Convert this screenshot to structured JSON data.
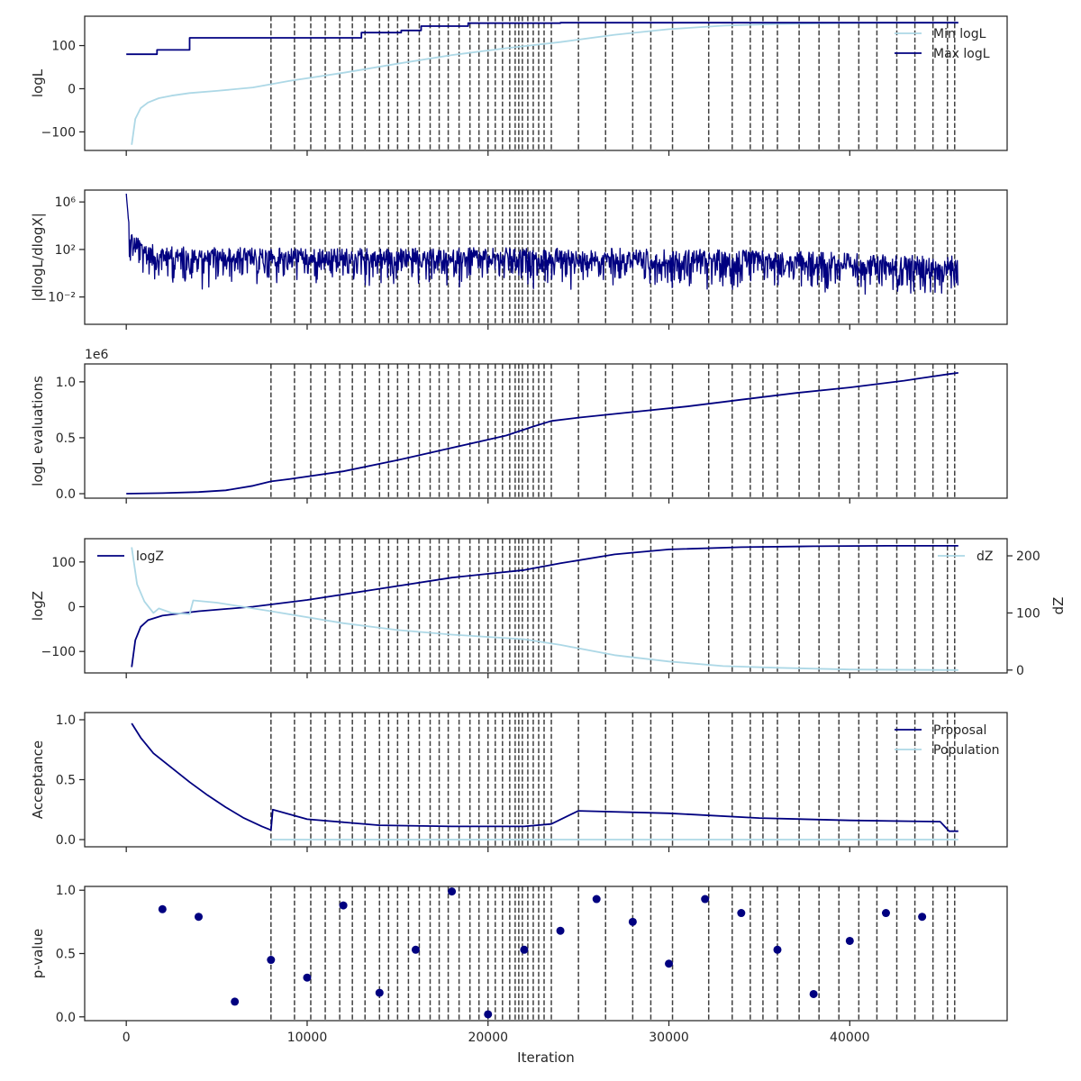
{
  "colors": {
    "dark": "#000080",
    "light": "#add8e6",
    "axis": "#262626",
    "vline": "#404040"
  },
  "xaxis": {
    "label": "Iteration",
    "xlim": [
      -2300,
      48700
    ],
    "ticks": [
      0,
      10000,
      20000,
      30000,
      40000
    ],
    "tick_labels": [
      "0",
      "10000",
      "20000",
      "30000",
      "40000"
    ]
  },
  "chart_data": [
    {
      "type": "line",
      "id": "logl",
      "ylabel": "logL",
      "ylim": [
        -143,
        168
      ],
      "yticks": [
        -100,
        0,
        100
      ],
      "ytick_labels": [
        "−100",
        "0",
        "100"
      ],
      "legend": {
        "placement": "top-right"
      },
      "series": [
        {
          "name": "Min logL",
          "color": "light",
          "x": [
            300,
            500,
            800,
            1200,
            1800,
            2500,
            3500,
            5000,
            7000,
            9000,
            12000,
            15000,
            18000,
            21000,
            24000,
            27000,
            30000,
            33000,
            36000,
            39000,
            42000,
            44000,
            46000
          ],
          "y": [
            -130,
            -70,
            -45,
            -32,
            -22,
            -16,
            -10,
            -5,
            3,
            18,
            37,
            58,
            78,
            94,
            108,
            125,
            138,
            146,
            150,
            152,
            153,
            153,
            153
          ]
        },
        {
          "name": "Max logL",
          "color": "dark",
          "step": true,
          "x": [
            0,
            1700,
            1700,
            3500,
            3500,
            13000,
            13000,
            15200,
            15200,
            16300,
            16300,
            18900,
            18900,
            24000,
            24000,
            46000
          ],
          "y": [
            80,
            80,
            90,
            90,
            118,
            118,
            130,
            130,
            135,
            135,
            145,
            145,
            152,
            152,
            153,
            153
          ]
        }
      ]
    },
    {
      "type": "line",
      "id": "dlogl",
      "ylabel": "|dlogL/dlogX|",
      "scale": "log",
      "ylim": [
        -4.3,
        7.0
      ],
      "yticks": [
        -2,
        2,
        6
      ],
      "ytick_labels": [
        "10⁻²",
        "10²",
        "10⁶"
      ],
      "series": [
        {
          "name": "",
          "color": "dark",
          "noisy": true,
          "x": [
            0,
            200,
            1000,
            3000,
            10000,
            25000,
            35000,
            45000,
            46000
          ],
          "y": [
            6.7,
            3.0,
            2.0,
            1.6,
            1.5,
            1.5,
            1.3,
            0.8,
            0.8
          ]
        }
      ]
    },
    {
      "type": "line",
      "id": "evals",
      "ylabel": "logL evaluations",
      "offset_label": "1e6",
      "ylim": [
        -0.04,
        1.16
      ],
      "yticks": [
        0.0,
        0.5,
        1.0
      ],
      "ytick_labels": [
        "0.0",
        "0.5",
        "1.0"
      ],
      "series": [
        {
          "name": "",
          "color": "dark",
          "x": [
            0,
            2000,
            4000,
            5500,
            7000,
            8000,
            9000,
            12000,
            15000,
            18000,
            21000,
            22500,
            23500,
            25000,
            28000,
            31000,
            34000,
            37000,
            40000,
            43000,
            45500,
            46000
          ],
          "y": [
            0.0,
            0.005,
            0.015,
            0.03,
            0.07,
            0.11,
            0.13,
            0.2,
            0.3,
            0.41,
            0.52,
            0.6,
            0.65,
            0.68,
            0.73,
            0.78,
            0.84,
            0.9,
            0.95,
            1.01,
            1.07,
            1.08
          ]
        }
      ]
    },
    {
      "type": "line",
      "id": "logz",
      "ylabel": "logZ",
      "ylabel_right": "dZ",
      "ylim": [
        -148,
        152
      ],
      "yticks": [
        -100,
        0,
        100
      ],
      "ytick_labels": [
        "−100",
        "0",
        "100"
      ],
      "ylim_right": [
        -5,
        230
      ],
      "yticks_right": [
        0,
        100,
        200
      ],
      "ytick_labels_right": [
        "0",
        "100",
        "200"
      ],
      "series": [
        {
          "name": "logZ",
          "color": "dark",
          "legend": "top-left",
          "x": [
            300,
            500,
            800,
            1200,
            2000,
            4000,
            7000,
            10000,
            14000,
            18000,
            22000,
            24000,
            27000,
            30000,
            34000,
            38000,
            42000,
            46000
          ],
          "y": [
            -135,
            -75,
            -45,
            -30,
            -20,
            -10,
            0,
            15,
            40,
            65,
            82,
            97,
            117,
            128,
            133,
            135,
            136,
            136
          ]
        },
        {
          "name": "dZ",
          "color": "light",
          "axis": "right",
          "legend": "top-right",
          "x": [
            300,
            600,
            1000,
            1500,
            1800,
            2500,
            3500,
            3700,
            5000,
            8000,
            12000,
            15000,
            18000,
            22000,
            24000,
            27000,
            30000,
            33000,
            36000,
            40000,
            46000
          ],
          "y": [
            215,
            150,
            120,
            100,
            108,
            100,
            98,
            122,
            118,
            103,
            82,
            70,
            62,
            54,
            44,
            26,
            15,
            7,
            4,
            1,
            0
          ]
        }
      ]
    },
    {
      "type": "line",
      "id": "accept",
      "ylabel": "Acceptance",
      "ylim": [
        -0.06,
        1.06
      ],
      "yticks": [
        0.0,
        0.5,
        1.0
      ],
      "ytick_labels": [
        "0.0",
        "0.5",
        "1.0"
      ],
      "legend": {
        "placement": "top-right"
      },
      "series": [
        {
          "name": "Proposal",
          "color": "dark",
          "x": [
            300,
            800,
            1500,
            2500,
            3500,
            4500,
            5500,
            6500,
            7500,
            8000,
            8100,
            10000,
            14000,
            18000,
            22000,
            23500,
            25000,
            30000,
            35000,
            40000,
            45000,
            45500,
            46000
          ],
          "y": [
            0.97,
            0.85,
            0.72,
            0.6,
            0.48,
            0.37,
            0.27,
            0.18,
            0.11,
            0.08,
            0.25,
            0.17,
            0.12,
            0.11,
            0.11,
            0.13,
            0.24,
            0.22,
            0.18,
            0.16,
            0.15,
            0.07,
            0.07
          ]
        },
        {
          "name": "Population",
          "color": "light",
          "x": [
            8000,
            46000
          ],
          "y": [
            0.0,
            0.0
          ]
        }
      ]
    },
    {
      "type": "scatter",
      "id": "pvalue",
      "ylabel": "p-value",
      "ylim": [
        -0.03,
        1.03
      ],
      "yticks": [
        0.0,
        0.5,
        1.0
      ],
      "ytick_labels": [
        "0.0",
        "0.5",
        "1.0"
      ],
      "series": [
        {
          "name": "",
          "color": "dark",
          "x": [
            2000,
            4000,
            6000,
            8000,
            10000,
            12000,
            14000,
            16000,
            18000,
            20000,
            22000,
            24000,
            26000,
            28000,
            30000,
            32000,
            34000,
            36000,
            38000,
            40000,
            42000,
            44000
          ],
          "y": [
            0.85,
            0.79,
            0.12,
            0.45,
            0.31,
            0.88,
            0.19,
            0.53,
            0.99,
            0.02,
            0.53,
            0.68,
            0.93,
            0.75,
            0.42,
            0.93,
            0.82,
            0.53,
            0.18,
            0.6,
            0.82,
            0.79
          ]
        }
      ]
    }
  ],
  "vlines": [
    8000,
    9300,
    10200,
    11000,
    11800,
    12500,
    13200,
    14000,
    14500,
    15000,
    15600,
    16200,
    16800,
    17300,
    17800,
    18400,
    19000,
    19500,
    20000,
    20400,
    20800,
    21200,
    21500,
    21700,
    21900,
    22200,
    22500,
    22800,
    23100,
    23500,
    25000,
    26500,
    28000,
    29000,
    30200,
    32200,
    33500,
    34500,
    35200,
    36000,
    37200,
    38300,
    39400,
    40500,
    41500,
    42600,
    43600,
    44600,
    45400,
    45800
  ]
}
